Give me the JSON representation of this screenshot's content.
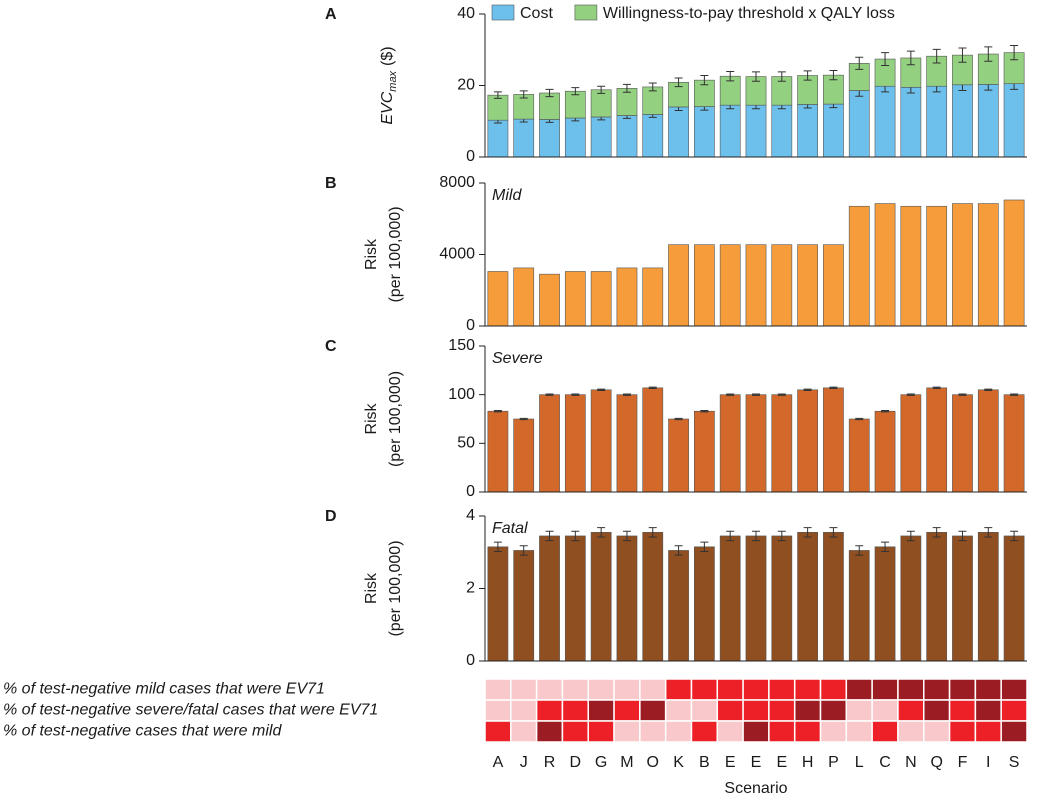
{
  "chart_data": [
    {
      "type": "bar",
      "label": "A",
      "ylabel": [
        "EVC",
        "max",
        "($)"
      ],
      "legend": "top",
      "series": [
        {
          "name": "Cost",
          "color": "#6cc0eb",
          "values": [
            10.3,
            10.6,
            10.5,
            10.9,
            11.2,
            11.6,
            11.9,
            14,
            14.1,
            14.5,
            14.5,
            14.5,
            14.7,
            14.8,
            18.6,
            19.8,
            19.5,
            19.8,
            20.2,
            20.3,
            20.5
          ],
          "errors": [
            0.8,
            0.8,
            0.8,
            0.8,
            0.8,
            0.8,
            0.8,
            1,
            1,
            1,
            1,
            1,
            1,
            1,
            1.6,
            1.6,
            1.6,
            1.6,
            1.6,
            1.6,
            1.6
          ]
        },
        {
          "name": "Willingness-to-pay threshold x QALY loss",
          "color": "#93d080",
          "values": [
            7,
            6.9,
            7.4,
            7.5,
            7.6,
            7.6,
            7.7,
            6.9,
            7.4,
            8.1,
            8,
            8,
            8.1,
            8.1,
            7.6,
            7.6,
            8.2,
            8.4,
            8.3,
            8.5,
            8.7
          ],
          "errors": [
            0.9,
            1,
            1,
            1,
            1,
            1.1,
            1.1,
            1.2,
            1.3,
            1.3,
            1.3,
            1.3,
            1.3,
            1.3,
            1.7,
            1.8,
            1.9,
            1.9,
            2,
            2,
            2
          ]
        }
      ],
      "ylim": [
        0,
        40
      ],
      "yticks": [
        0,
        20,
        40
      ]
    },
    {
      "type": "bar",
      "label": "B",
      "title": "Mild",
      "ylabel": [
        "Risk",
        "(per 100,000)"
      ],
      "color": "#f69c3b",
      "values": [
        3050,
        3250,
        2900,
        3050,
        3050,
        3250,
        3250,
        4550,
        4550,
        4550,
        4550,
        4550,
        4550,
        4550,
        6700,
        6850,
        6700,
        6700,
        6850,
        6850,
        7050
      ],
      "ylim": [
        0,
        8000
      ],
      "yticks": [
        0,
        4000,
        8000
      ]
    },
    {
      "type": "bar",
      "label": "C",
      "title": "Severe",
      "ylabel": [
        "Risk",
        "(per 100,000)"
      ],
      "color": "#d2692a",
      "values": [
        83,
        75,
        100,
        100,
        105,
        100,
        107,
        75,
        83,
        100,
        100,
        100,
        105,
        107,
        75,
        83,
        100,
        107,
        100,
        105,
        100
      ],
      "errors": [
        0.7,
        0.7,
        0.7,
        0.7,
        0.7,
        0.7,
        0.7,
        0.7,
        0.7,
        0.7,
        0.7,
        0.7,
        0.7,
        0.7,
        0.7,
        0.7,
        0.7,
        0.7,
        0.7,
        0.7,
        0.7
      ],
      "ylim": [
        0,
        150
      ],
      "yticks": [
        0,
        50,
        100,
        150
      ]
    },
    {
      "type": "bar",
      "label": "D",
      "title": "Fatal",
      "ylabel": [
        "Risk",
        "(per 100,000)"
      ],
      "color": "#8f4f21",
      "values": [
        3.15,
        3.05,
        3.45,
        3.45,
        3.55,
        3.45,
        3.55,
        3.05,
        3.15,
        3.45,
        3.45,
        3.45,
        3.55,
        3.55,
        3.05,
        3.15,
        3.45,
        3.55,
        3.45,
        3.55,
        3.45
      ],
      "errors": [
        0.13,
        0.13,
        0.13,
        0.13,
        0.13,
        0.13,
        0.13,
        0.13,
        0.13,
        0.13,
        0.13,
        0.13,
        0.13,
        0.13,
        0.13,
        0.13,
        0.13,
        0.13,
        0.13,
        0.13,
        0.13
      ],
      "ylim": [
        0,
        4
      ],
      "yticks": [
        0,
        2,
        4
      ]
    },
    {
      "type": "heatmap",
      "xlabel": "Scenario",
      "categories": [
        "A",
        "J",
        "R",
        "D",
        "G",
        "M",
        "O",
        "K",
        "B",
        "E",
        "E",
        "E",
        "H",
        "P",
        "L",
        "C",
        "N",
        "Q",
        "F",
        "I",
        "S"
      ],
      "row_labels": [
        "% of test-negative mild cases that were EV71",
        "% of test-negative severe/fatal cases that were EV71",
        "% of test-negative cases that were mild"
      ],
      "colors": [
        "#f8c8cb",
        "#ed2027",
        "#9b1c22"
      ],
      "values": [
        [
          1,
          1,
          1,
          1,
          1,
          1,
          1,
          2,
          2,
          2,
          2,
          2,
          2,
          2,
          3,
          3,
          3,
          3,
          3,
          3,
          3
        ],
        [
          1,
          1,
          2,
          2,
          3,
          2,
          3,
          1,
          1,
          2,
          2,
          2,
          3,
          3,
          1,
          1,
          2,
          3,
          2,
          3,
          2
        ],
        [
          2,
          1,
          3,
          2,
          2,
          1,
          1,
          1,
          2,
          1,
          3,
          2,
          2,
          1,
          1,
          2,
          1,
          1,
          2,
          2,
          3
        ]
      ]
    }
  ]
}
